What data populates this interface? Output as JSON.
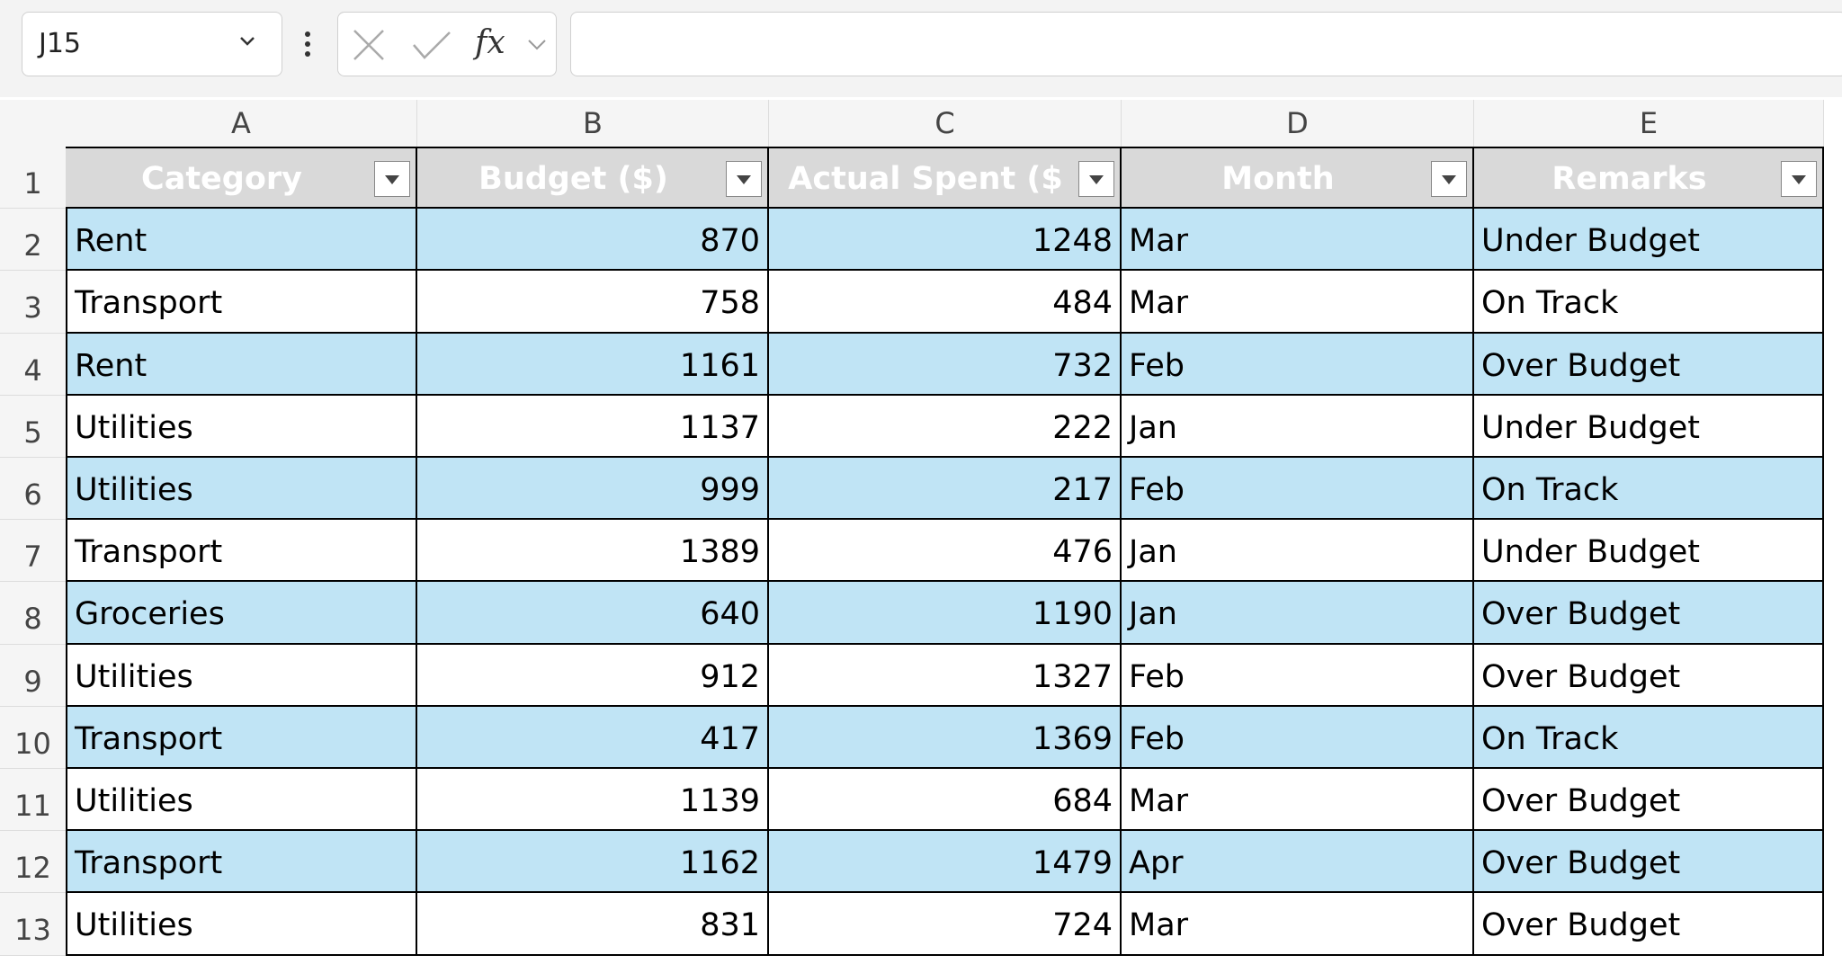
{
  "formula_bar": {
    "name_box": "J15",
    "function_label": "fx"
  },
  "column_letters": [
    "A",
    "B",
    "C",
    "D",
    "E"
  ],
  "row_numbers": [
    1,
    2,
    3,
    4,
    5,
    6,
    7,
    8,
    9,
    10,
    11,
    12,
    13
  ],
  "table": {
    "header": [
      "Category",
      "Budget ($)",
      "Actual Spent ($",
      "Month",
      "Remarks"
    ],
    "rows": [
      [
        "Rent",
        870,
        1248,
        "Mar",
        "Under Budget"
      ],
      [
        "Transport",
        758,
        484,
        "Mar",
        "On Track"
      ],
      [
        "Rent",
        1161,
        732,
        "Feb",
        "Over Budget"
      ],
      [
        "Utilities",
        1137,
        222,
        "Jan",
        "Under Budget"
      ],
      [
        "Utilities",
        999,
        217,
        "Feb",
        "On Track"
      ],
      [
        "Transport",
        1389,
        476,
        "Jan",
        "Under Budget"
      ],
      [
        "Groceries",
        640,
        1190,
        "Jan",
        "Over Budget"
      ],
      [
        "Utilities",
        912,
        1327,
        "Feb",
        "Over Budget"
      ],
      [
        "Transport",
        417,
        1369,
        "Feb",
        "On Track"
      ],
      [
        "Utilities",
        1139,
        684,
        "Mar",
        "Over Budget"
      ],
      [
        "Transport",
        1162,
        1479,
        "Apr",
        "Over Budget"
      ],
      [
        "Utilities",
        831,
        724,
        "Mar",
        "Over Budget"
      ]
    ]
  }
}
